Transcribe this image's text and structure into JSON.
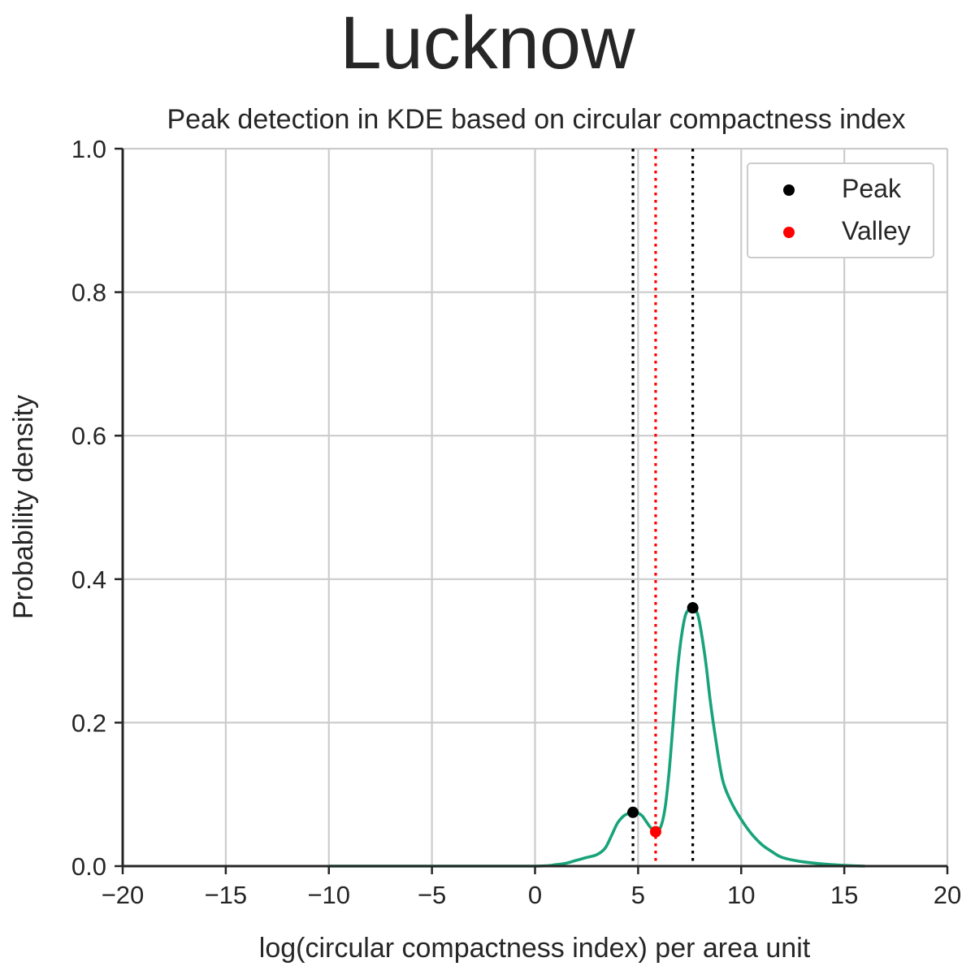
{
  "chart_data": {
    "type": "line",
    "suptitle": "Lucknow",
    "title": "Peak detection in KDE based on circular compactness index",
    "xlabel": "log(circular compactness index) per area unit",
    "ylabel": "Probability density",
    "xlim": [
      -20,
      20
    ],
    "ylim": [
      0,
      1.0
    ],
    "xticks": [
      -20,
      -15,
      -10,
      -5,
      0,
      5,
      10,
      15,
      20
    ],
    "xtick_labels": [
      "−20",
      "−15",
      "−10",
      "−5",
      "0",
      "5",
      "10",
      "15",
      "20"
    ],
    "yticks": [
      0.0,
      0.2,
      0.4,
      0.6,
      0.8,
      1.0
    ],
    "ytick_labels": [
      "0.0",
      "0.2",
      "0.4",
      "0.6",
      "0.8",
      "1.0"
    ],
    "grid": true,
    "legend_placement": "upper-right",
    "legend": [
      {
        "label": "Peak",
        "color": "#000000"
      },
      {
        "label": "Valley",
        "color": "#ff0000"
      }
    ],
    "kde_color": "#18a37a",
    "kde": {
      "x": [
        -10,
        -5,
        0,
        1,
        1.5,
        2,
        2.5,
        3,
        3.4,
        3.7,
        4.0,
        4.3,
        4.6,
        4.8,
        5.0,
        5.2,
        5.4,
        5.6,
        5.85,
        6.1,
        6.3,
        6.5,
        6.7,
        6.9,
        7.1,
        7.3,
        7.5,
        7.7,
        7.9,
        8.1,
        8.3,
        8.5,
        8.8,
        9.1,
        9.5,
        10.0,
        10.5,
        11.0,
        11.5,
        12.0,
        13.0,
        14.0,
        15.0,
        16.0
      ],
      "y": [
        0.0,
        0.0,
        0.0,
        0.002,
        0.004,
        0.008,
        0.012,
        0.016,
        0.025,
        0.042,
        0.06,
        0.07,
        0.074,
        0.075,
        0.074,
        0.07,
        0.062,
        0.054,
        0.048,
        0.055,
        0.08,
        0.13,
        0.2,
        0.27,
        0.32,
        0.35,
        0.358,
        0.36,
        0.35,
        0.32,
        0.28,
        0.23,
        0.17,
        0.12,
        0.09,
        0.065,
        0.045,
        0.03,
        0.02,
        0.012,
        0.006,
        0.003,
        0.001,
        0.0
      ]
    },
    "peaks": [
      {
        "x": 4.75,
        "y": 0.075
      },
      {
        "x": 7.65,
        "y": 0.36
      }
    ],
    "valleys": [
      {
        "x": 5.85,
        "y": 0.048
      }
    ],
    "vlines": [
      {
        "x": 4.75,
        "color": "#000000",
        "style": "dotted"
      },
      {
        "x": 5.85,
        "color": "#ff0000",
        "style": "dotted"
      },
      {
        "x": 7.65,
        "color": "#000000",
        "style": "dotted"
      }
    ]
  }
}
